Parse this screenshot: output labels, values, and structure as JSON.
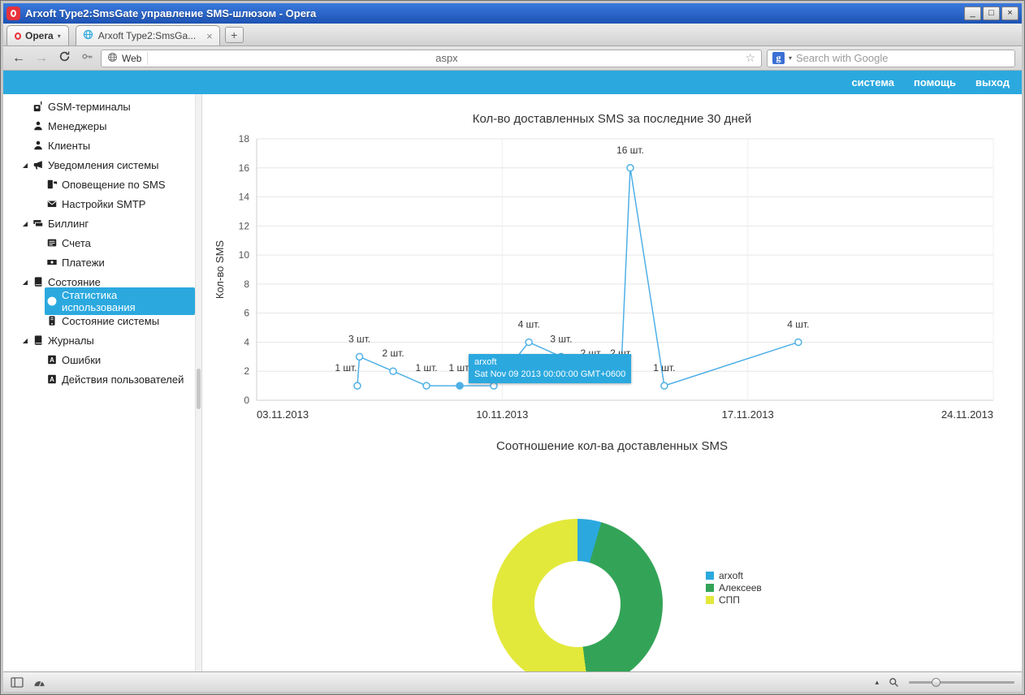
{
  "window": {
    "title": "Arxoft Type2:SmsGate управление SMS-шлюзом - Opera",
    "controls": {
      "minimize": "_",
      "maximize": "□",
      "close": "×"
    }
  },
  "tabbar": {
    "opera_button": "Opera",
    "tab_title": "Arxoft Type2:SmsGa...",
    "tab_close": "×",
    "new_tab": "+"
  },
  "addressbar": {
    "back": "←",
    "forward": "→",
    "url_badge": "Web",
    "url_value": "aspx",
    "bookmark_star": "☆",
    "search_engine": "g",
    "search_placeholder": "Search with Google",
    "dropdown_arrow": "▾"
  },
  "appmenu": {
    "items": [
      {
        "label": "система"
      },
      {
        "label": "помощь"
      },
      {
        "label": "выход"
      }
    ]
  },
  "sidebar": {
    "expander_glyph": "◢",
    "items": [
      {
        "id": "gsm-terminals",
        "label": "GSM-терминалы",
        "icon": "gsm-terminal-icon",
        "indent": 0
      },
      {
        "id": "managers",
        "label": "Менеджеры",
        "icon": "person-icon",
        "indent": 0
      },
      {
        "id": "clients",
        "label": "Клиенты",
        "icon": "person-icon",
        "indent": 0
      },
      {
        "id": "system-notifications",
        "label": "Уведомления системы",
        "icon": "megaphone-icon",
        "indent": 0,
        "expander": true
      },
      {
        "id": "sms-alerts",
        "label": "Оповещение по SMS",
        "icon": "sms-phone-icon",
        "indent": 1
      },
      {
        "id": "smtp-settings",
        "label": "Настройки SMTP",
        "icon": "envelope-icon",
        "indent": 1
      },
      {
        "id": "billing",
        "label": "Биллинг",
        "icon": "banknotes-icon",
        "indent": 0,
        "expander": true
      },
      {
        "id": "invoices",
        "label": "Счета",
        "icon": "invoice-icon",
        "indent": 1
      },
      {
        "id": "payments",
        "label": "Платежи",
        "icon": "payment-icon",
        "indent": 1
      },
      {
        "id": "state",
        "label": "Состояние",
        "icon": "book-icon",
        "indent": 0,
        "expander": true
      },
      {
        "id": "usage-stats",
        "label": "Статистика использования",
        "icon": "pie-chart-icon",
        "indent": 1,
        "selected": true
      },
      {
        "id": "system-state",
        "label": "Состояние системы",
        "icon": "device-icon",
        "indent": 1
      },
      {
        "id": "journals",
        "label": "Журналы",
        "icon": "journal-icon",
        "indent": 0,
        "expander": true
      },
      {
        "id": "errors",
        "label": "Ошибки",
        "icon": "error-page-icon",
        "indent": 1
      },
      {
        "id": "user-actions",
        "label": "Действия пользователей",
        "icon": "actions-page-icon",
        "indent": 1
      }
    ]
  },
  "chart_data": [
    {
      "type": "line",
      "title": "Кол-во доставленных SMS за последние 30 дней",
      "ylabel": "Кол-во SMS",
      "ylim": [
        0,
        18
      ],
      "ytick_step": 2,
      "x_range_days": 21,
      "grid": true,
      "color": "#4FB0E6",
      "unit_suffix": " шт.",
      "xticks": [
        {
          "day": 0,
          "label": "03.11.2013"
        },
        {
          "day": 7,
          "label": "10.11.2013"
        },
        {
          "day": 14,
          "label": "17.11.2013"
        },
        {
          "day": 21,
          "label": "24.11.2013"
        }
      ],
      "points": [
        {
          "day": 2.87,
          "value": 1,
          "dx": -14
        },
        {
          "day": 2.93,
          "value": 3
        },
        {
          "day": 3.89,
          "value": 2
        },
        {
          "day": 4.84,
          "value": 1
        },
        {
          "day": 5.79,
          "value": 1,
          "hovered": true
        },
        {
          "day": 6.76,
          "value": 1
        },
        {
          "day": 7.76,
          "value": 4
        },
        {
          "day": 8.68,
          "value": 3
        },
        {
          "day": 9.54,
          "value": 2
        },
        {
          "day": 10.39,
          "value": 2
        },
        {
          "day": 10.65,
          "value": 16
        },
        {
          "day": 11.62,
          "value": 1
        },
        {
          "day": 15.44,
          "value": 4
        }
      ],
      "tooltip": {
        "line1": "arxoft",
        "line2": "Sat Nov 09 2013 00:00:00 GMT+0600"
      }
    },
    {
      "type": "donut",
      "title": "Соотношение кол-ва доставленных SMS",
      "legend_position": "right",
      "slices": [
        {
          "label": "arxoft",
          "pct": 4.5,
          "color": "#2BA9DF"
        },
        {
          "label": "Алексеев",
          "pct": 43.5,
          "color": "#33A457"
        },
        {
          "label": "СПП",
          "pct": 52.0,
          "color": "#E2E93B"
        }
      ]
    }
  ],
  "statusbar": {
    "caret": "▴"
  },
  "colors": {
    "accent": "#2BA9DF",
    "line": "#4FB0E6",
    "green": "#33A457",
    "yellow": "#E2E93B"
  }
}
